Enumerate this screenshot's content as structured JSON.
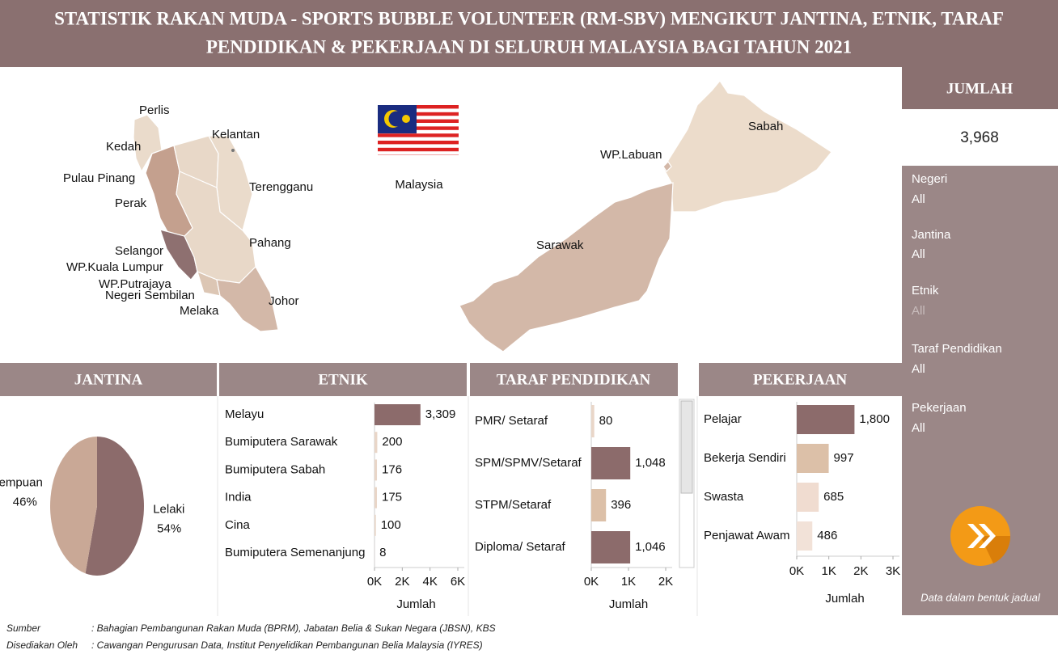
{
  "title_line_1": "STATISTIK RAKAN MUDA - SPORTS BUBBLE VOLUNTEER (RM-SBV) MENGIKUT JANTINA, ETNIK, TARAF",
  "title_line_2": "PENDIDIKAN & PEKERJAAN DI SELURUH MALAYSIA BAGI TAHUN 2021",
  "map": {
    "peninsular_labels": [
      "Perlis",
      "Kedah",
      "Kelantan",
      "Pulau Pinang",
      "Terengganu",
      "Perak",
      "Pahang",
      "Selangor",
      "WP.Kuala Lumpur",
      "WP.Putrajaya",
      "Negeri Sembilan",
      "Johor",
      "Melaka"
    ],
    "flag_label": "Malaysia",
    "borneo_labels": [
      "Sabah",
      "WP.Labuan",
      "Sarawak"
    ]
  },
  "sidebar": {
    "total_title": "JUMLAH",
    "total": "3,968",
    "filters": [
      {
        "name": "Negeri",
        "value": "All"
      },
      {
        "name": "Jantina",
        "value": "All"
      },
      {
        "name": "Etnik",
        "value": "All"
      },
      {
        "name": "Taraf Pendidikan",
        "value": "All"
      },
      {
        "name": "Pekerjaan",
        "value": "All"
      }
    ],
    "button_caption": "Data dalam bentuk jadual"
  },
  "chart_data": [
    {
      "type": "pie",
      "title": "JANTINA",
      "categories": [
        "Lelaki",
        "Perempuan"
      ],
      "values": [
        54,
        46
      ],
      "value_labels": [
        "54%",
        "46%"
      ],
      "colors": [
        "#8c6b6b",
        "#c9a896"
      ]
    },
    {
      "type": "bar",
      "title": "ETNIK",
      "categories": [
        "Melayu",
        "Bumiputera Sarawak",
        "Bumiputera Sabah",
        "India",
        "Cina",
        "Bumiputera Semenanjung"
      ],
      "values": [
        3309,
        200,
        176,
        175,
        100,
        8
      ],
      "value_labels": [
        "3,309",
        "200",
        "176",
        "175",
        "100",
        "8"
      ],
      "colors": [
        "#8c6b6b",
        "#e9d6c8",
        "#e9d6c8",
        "#e9d6c8",
        "#e9d6c8",
        "#e9d6c8"
      ],
      "xlabel": "Jumlah",
      "xlim": [
        0,
        6000
      ],
      "xticks": [
        {
          "value": 0,
          "label": "0K"
        },
        {
          "value": 2000,
          "label": "2K"
        },
        {
          "value": 4000,
          "label": "4K"
        },
        {
          "value": 6000,
          "label": "6K"
        }
      ]
    },
    {
      "type": "bar",
      "title": "TARAF PENDIDIKAN",
      "categories": [
        "PMR/ Setaraf",
        "SPM/SPMV/Setaraf",
        "STPM/Setaraf",
        "Diploma/ Setaraf"
      ],
      "values": [
        80,
        1048,
        396,
        1046
      ],
      "value_labels": [
        "80",
        "1,048",
        "396",
        "1,046"
      ],
      "colors": [
        "#e9d6c8",
        "#8c6b6b",
        "#dcc0a8",
        "#8c6b6b"
      ],
      "xlabel": "Jumlah",
      "xlim": [
        0,
        2000
      ],
      "xticks": [
        {
          "value": 0,
          "label": "0K"
        },
        {
          "value": 1000,
          "label": "1K"
        },
        {
          "value": 2000,
          "label": "2K"
        }
      ]
    },
    {
      "type": "bar",
      "title": "PEKERJAAN",
      "categories": [
        "Pelajar",
        "Bekerja Sendiri",
        "Swasta",
        "Penjawat Awam"
      ],
      "values": [
        1800,
        997,
        685,
        486
      ],
      "value_labels": [
        "1,800",
        "997",
        "685",
        "486"
      ],
      "colors": [
        "#8c6b6b",
        "#dcc0a8",
        "#f0dcd0",
        "#f2e2d8"
      ],
      "xlabel": "Jumlah",
      "xlim": [
        0,
        3000
      ],
      "xticks": [
        {
          "value": 0,
          "label": "0K"
        },
        {
          "value": 1000,
          "label": "1K"
        },
        {
          "value": 2000,
          "label": "2K"
        },
        {
          "value": 3000,
          "label": "3K"
        }
      ]
    }
  ],
  "footer": [
    {
      "label": "Sumber",
      "text": ": Bahagian Pembangunan Rakan Muda (BPRM), Jabatan Belia & Sukan Negara (JBSN), KBS"
    },
    {
      "label": "Disediakan Oleh",
      "text": ": Cawangan Pengurusan Data, Institut Penyelidikan Pembangunan Belia Malaysia (IYRES)"
    }
  ]
}
